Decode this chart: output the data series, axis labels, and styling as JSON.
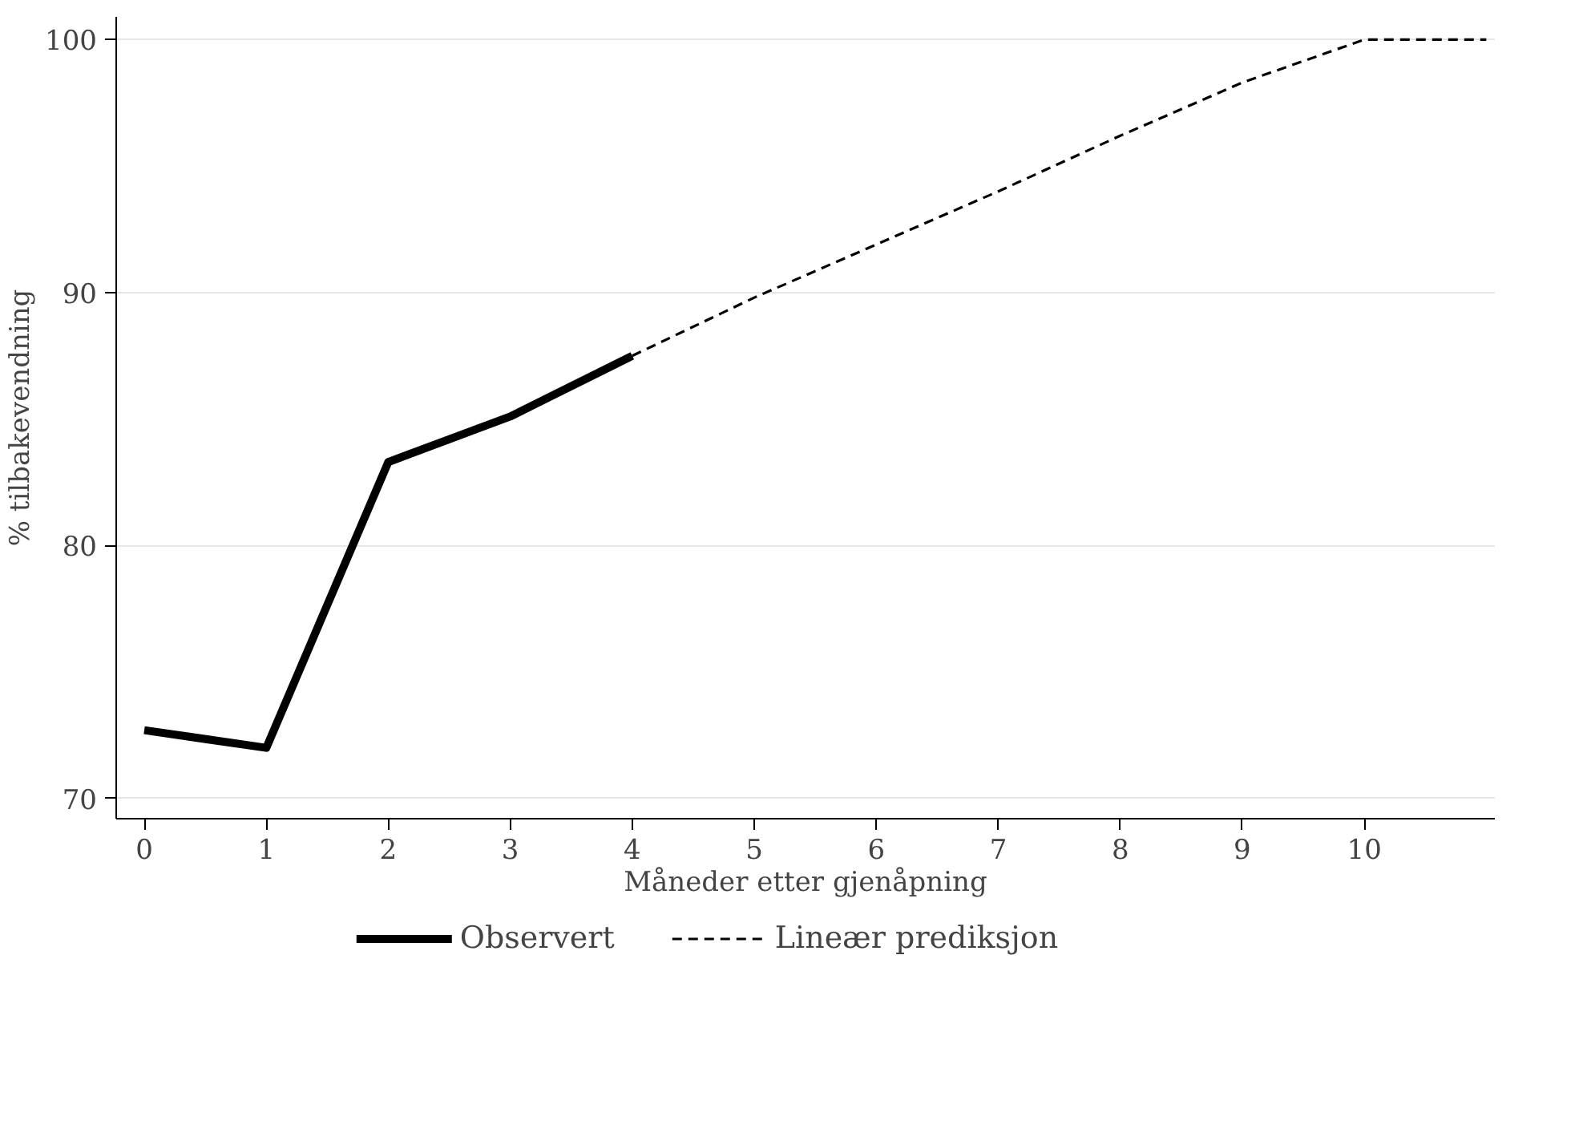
{
  "chart_data": {
    "type": "line",
    "xlabel": "Måneder etter gjenåpning",
    "ylabel": "% tilbakevendning",
    "series": [
      {
        "name": "Observert",
        "color": "#000000",
        "x": [
          0,
          1,
          2,
          3,
          4
        ],
        "values": [
          72.7,
          72.0,
          83.3,
          85.1,
          87.5
        ],
        "line_style": "solid"
      },
      {
        "name": "Lineær prediksjon",
        "color": "#000000",
        "x": [
          4,
          5,
          6,
          7,
          8,
          9,
          10,
          11
        ],
        "values": [
          87.5,
          89.8,
          91.9,
          94.0,
          96.2,
          98.3,
          100,
          100
        ],
        "line_style": "dashed"
      }
    ],
    "xlim": [
      -0.23,
      11.07
    ],
    "ylim": [
      69.2,
      100.9
    ],
    "xticks": [
      0,
      1,
      2,
      3,
      4,
      5,
      6,
      7,
      8,
      9,
      10
    ],
    "yticks": [
      70,
      80,
      90,
      100
    ],
    "grid": "y",
    "legend": "bottom",
    "marker": "none"
  }
}
